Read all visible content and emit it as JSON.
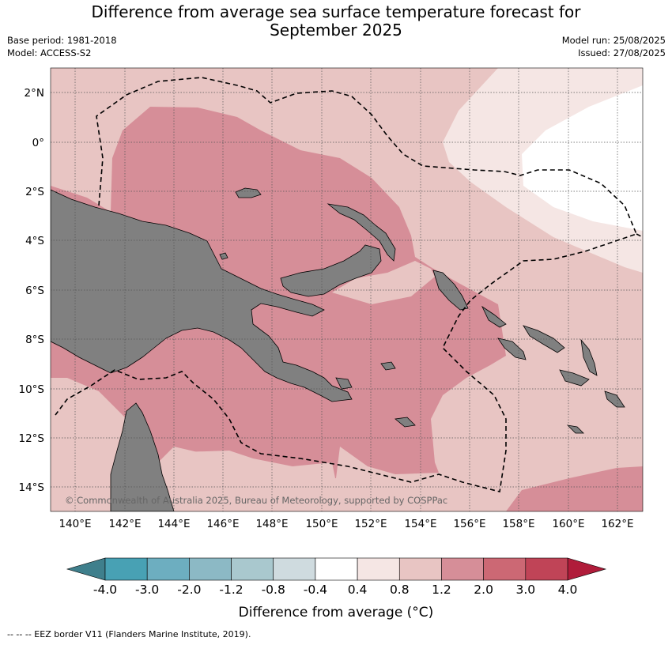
{
  "title": {
    "line1": "Difference from average sea surface temperature forecast for",
    "line2": "September 2025"
  },
  "meta": {
    "base_period": "Base period: 1981-2018",
    "model": "Model: ACCESS-S2",
    "model_run": "Model run: 25/08/2025",
    "issued": "Issued: 27/08/2025"
  },
  "map": {
    "copyright": "© Commonwealth of Australia 2025, Bureau of Meteorology, supported by COSPPac",
    "lat_labels": [
      "2°N",
      "0°",
      "2°S",
      "4°S",
      "6°S",
      "8°S",
      "10°S",
      "12°S",
      "14°S"
    ],
    "lon_labels": [
      "140°E",
      "142°E",
      "144°E",
      "146°E",
      "148°E",
      "150°E",
      "152°E",
      "154°E",
      "156°E",
      "158°E",
      "160°E",
      "162°E"
    ],
    "land_color": "#808080",
    "ocean_base_color": "#e8c5c3",
    "border_style": "dashed"
  },
  "colorbar": {
    "title": "Difference from average (°C)",
    "tick_labels": [
      "-4.0",
      "-3.0",
      "-2.0",
      "-1.2",
      "-0.8",
      "-0.4",
      "0.4",
      "0.8",
      "1.2",
      "2.0",
      "3.0",
      "4.0"
    ],
    "colors": [
      "#3f7f8c",
      "#48a1b4",
      "#6daec0",
      "#8cb9c5",
      "#a9c8ce",
      "#cfdbdf",
      "#ffffff",
      "#f5e6e4",
      "#e8c5c3",
      "#d68e98",
      "#cc6874",
      "#c04457",
      "#b01c3a"
    ]
  },
  "footer": "--  --  -- EEZ border V11 (Flanders Marine Institute, 2019)."
}
